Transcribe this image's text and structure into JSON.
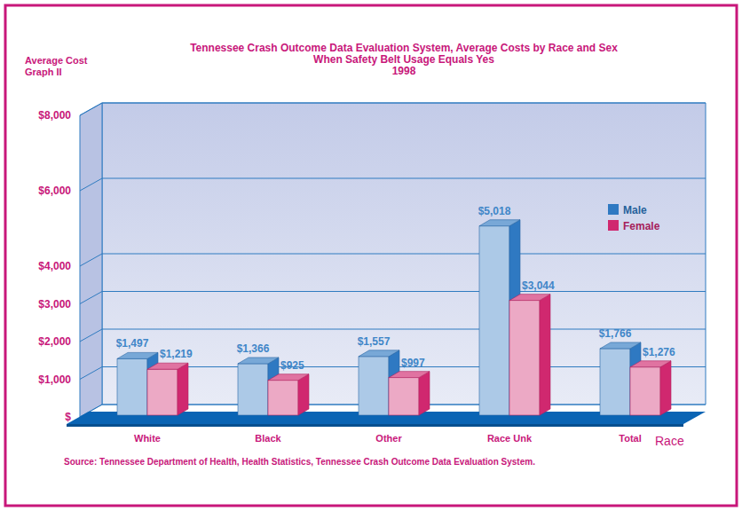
{
  "chart_data": {
    "type": "bar",
    "title": [
      "Tennessee Crash Outcome Data Evaluation System, Average Costs by Race and Sex",
      "When Safety Belt Usage Equals Yes",
      "1998"
    ],
    "ylabel": [
      "Average Cost",
      "Graph II"
    ],
    "xlabel": "Race",
    "annotations": [
      "Source: Tennessee Department of Health, Health Statistics, Tennessee Crash Outcome Data Evaluation System."
    ],
    "categories": [
      "White",
      "Black",
      "Other",
      "Race Unk",
      "Total"
    ],
    "series": [
      {
        "name": "Male",
        "color": "#2f79c2",
        "values": [
          1497,
          1366,
          1557,
          5018,
          1766
        ],
        "value_labels": [
          "$1,497",
          "$1,366",
          "$1,557",
          "$5,018",
          "$1,766"
        ]
      },
      {
        "name": "Female",
        "color": "#d0286f",
        "values": [
          1219,
          925,
          997,
          3044,
          1276
        ],
        "value_labels": [
          "$1,219",
          "$925",
          "$997",
          "$3,044",
          "$1,276"
        ]
      }
    ],
    "ylim": [
      0,
      8000
    ],
    "yticks": [
      {
        "value": 0,
        "label": "$"
      },
      {
        "value": 1000,
        "label": "$1,000"
      },
      {
        "value": 2000,
        "label": "$2,000"
      },
      {
        "value": 3000,
        "label": "$3,000"
      },
      {
        "value": 4000,
        "label": "$4,000"
      },
      {
        "value": 6000,
        "label": "$6,000"
      },
      {
        "value": 8000,
        "label": "$8,000"
      }
    ],
    "grid": true,
    "legend": "right",
    "data_labels": true
  }
}
